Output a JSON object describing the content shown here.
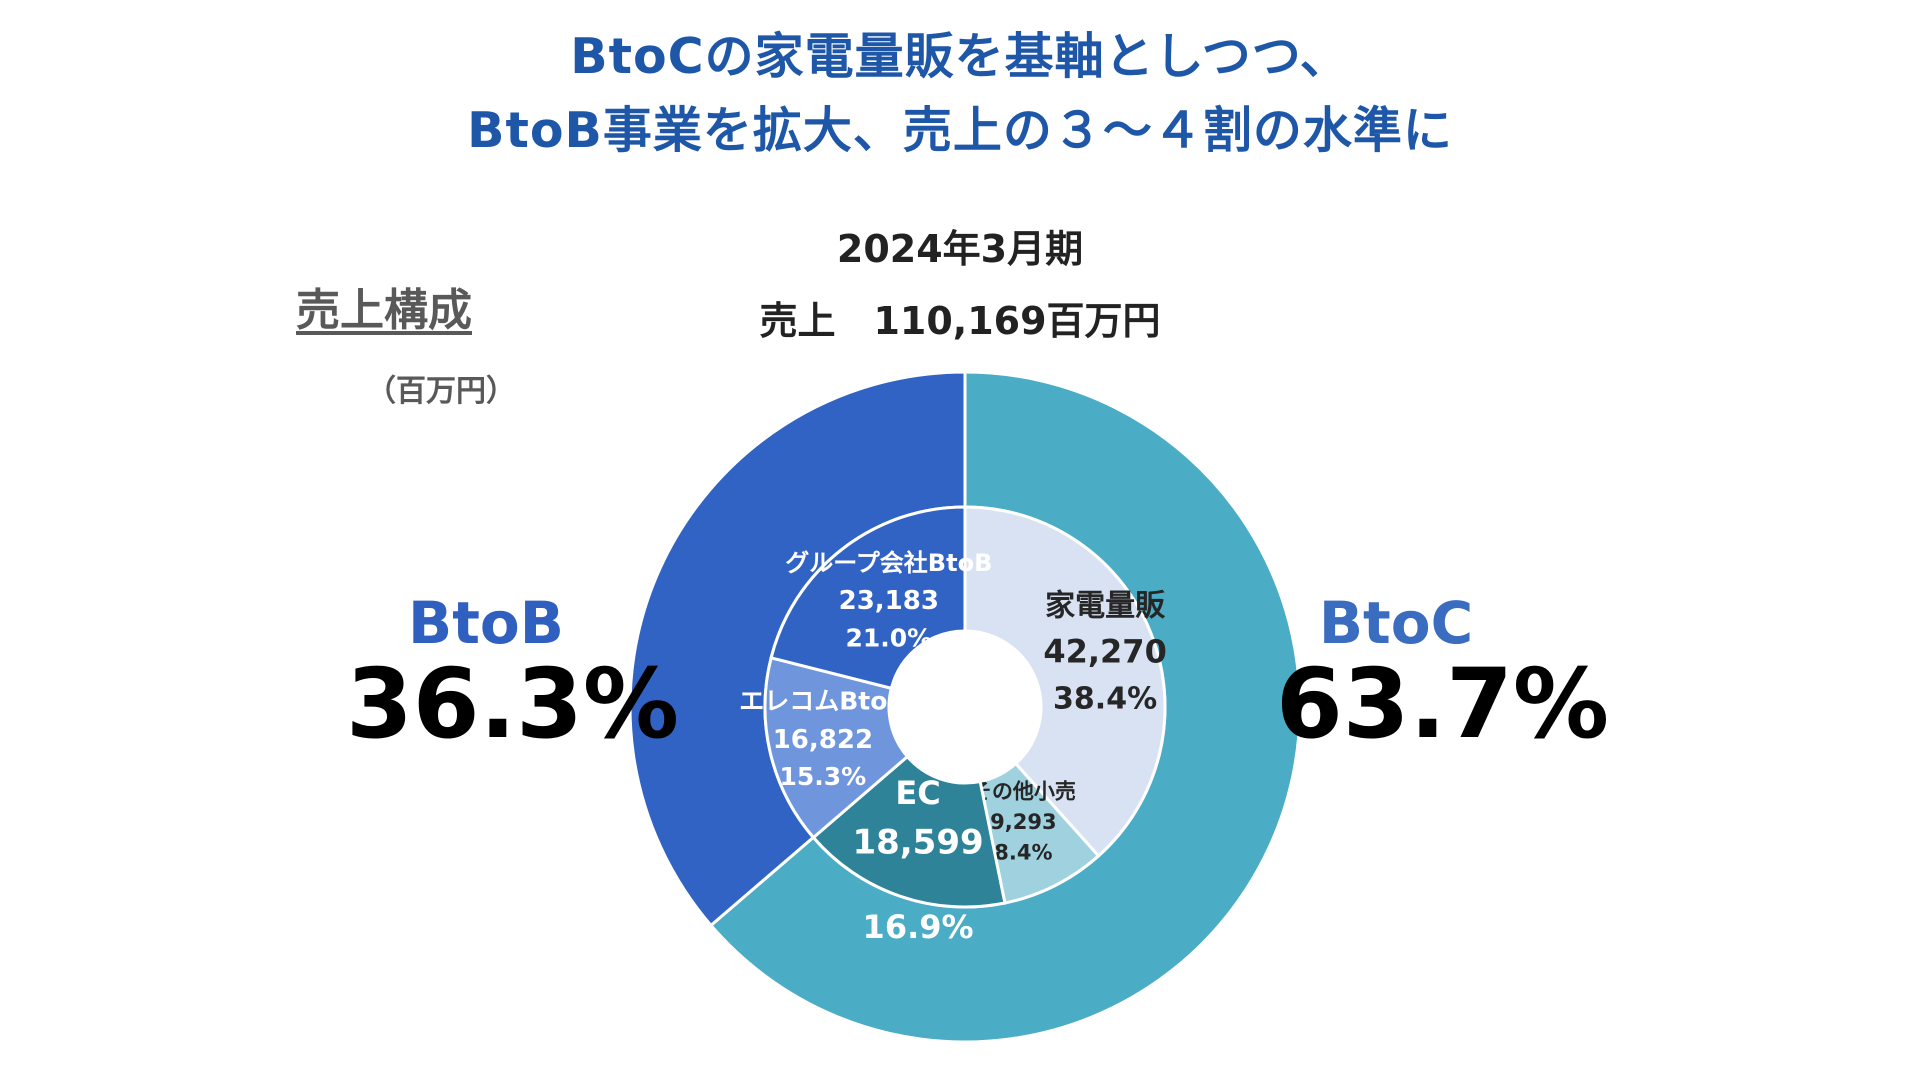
{
  "headline": {
    "line1": "BtoCの家電量販を基軸としつつ、",
    "line2": "BtoB事業を拡大、売上の３～４割の水準に"
  },
  "period": "2024年3月期",
  "sales_total": "売上　110,169百万円",
  "section_title": "売上構成",
  "unit": "（百万円）",
  "btob": {
    "name": "BtoB",
    "share": "36.3%"
  },
  "btoc": {
    "name": "BtoC",
    "share": "63.7%"
  },
  "colors": {
    "btoc_outer": "#4bacc6",
    "btob_outer": "#3163c4",
    "home_appliance": "#d9e2f3",
    "other_retail": "#9fd1df",
    "ec": "#2e8399",
    "elecom_btob": "#6f95dd",
    "group_btob": "#3163c4",
    "headline": "#1f57a8"
  },
  "chart_data": {
    "type": "pie",
    "subtype": "nested-donut",
    "title": "2024年3月期",
    "subtitle": "売上　110,169百万円",
    "unit": "百万円",
    "total": 110169,
    "outer": [
      {
        "name": "BtoC",
        "share": 63.7,
        "label": "63.7%"
      },
      {
        "name": "BtoB",
        "share": 36.3,
        "label": "36.3%"
      }
    ],
    "inner": [
      {
        "name": "家電量販",
        "group": "BtoC",
        "value": 42270,
        "value_label": "42,270",
        "share": 38.4,
        "share_label": "38.4%"
      },
      {
        "name": "その他小売",
        "group": "BtoC",
        "value": 9293,
        "value_label": "9,293",
        "share": 8.4,
        "share_label": "8.4%"
      },
      {
        "name": "EC",
        "group": "BtoC",
        "value": 18599,
        "value_label": "18,599",
        "share": 16.9,
        "share_label": "16.9%"
      },
      {
        "name": "エレコムBtoB",
        "group": "BtoB",
        "value": 16822,
        "value_label": "16,822",
        "share": 15.3,
        "share_label": "15.3%"
      },
      {
        "name": "グループ会社BtoB",
        "group": "BtoB",
        "value": 23183,
        "value_label": "23,183",
        "share": 21.0,
        "share_label": "21.0%"
      }
    ]
  }
}
